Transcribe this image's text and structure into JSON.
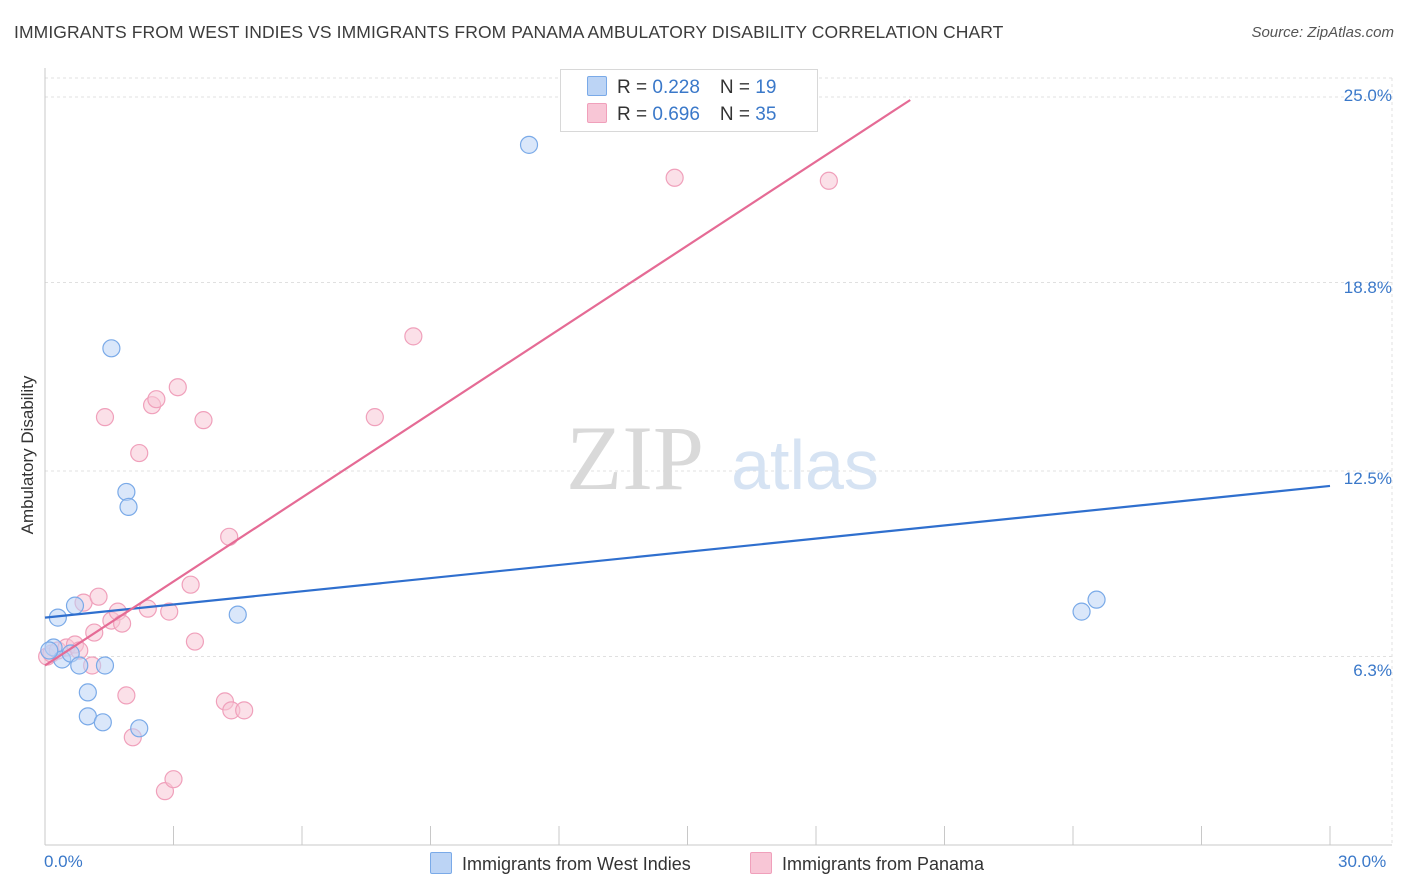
{
  "chart_data": {
    "type": "scatter",
    "title": "IMMIGRANTS FROM WEST INDIES VS IMMIGRANTS FROM PANAMA AMBULATORY DISABILITY CORRELATION CHART",
    "source": "Source: ZipAtlas.com",
    "ylabel": "Ambulatory Disability",
    "xlim": [
      0,
      30
    ],
    "ylim": [
      0,
      25
    ],
    "y_ticks": [
      {
        "value": 25.0,
        "label": "25.0%"
      },
      {
        "value": 18.8,
        "label": "18.8%"
      },
      {
        "value": 12.5,
        "label": "12.5%"
      },
      {
        "value": 6.3,
        "label": "6.3%"
      }
    ],
    "x_tick_labels": {
      "min": "0.0%",
      "max": "30.0%"
    },
    "watermark": {
      "zip": "ZIP",
      "atlas": "atlas"
    },
    "legend": [
      {
        "r_label": "R = ",
        "r": "0.228",
        "n_label": "N = ",
        "n": "19"
      },
      {
        "r_label": "R = ",
        "r": "0.696",
        "n_label": "N = ",
        "n": "35"
      }
    ],
    "series": [
      {
        "name": "Immigrants from West Indies",
        "color": "#7aaae8",
        "fill": "#bcd4f5",
        "line_color": "#2f6fce",
        "trend": {
          "x0": 0,
          "y0": 7.6,
          "x1": 30,
          "y1": 12.0
        },
        "points": [
          [
            0.2,
            6.6
          ],
          [
            0.3,
            7.6
          ],
          [
            0.4,
            6.2
          ],
          [
            0.6,
            6.4
          ],
          [
            0.7,
            8.0
          ],
          [
            0.8,
            6.0
          ],
          [
            1.0,
            5.1
          ],
          [
            1.0,
            4.3
          ],
          [
            1.35,
            4.1
          ],
          [
            1.4,
            6.0
          ],
          [
            1.55,
            16.6
          ],
          [
            1.9,
            11.8
          ],
          [
            1.95,
            11.3
          ],
          [
            2.2,
            3.9
          ],
          [
            4.5,
            7.7
          ],
          [
            11.3,
            23.4
          ],
          [
            24.2,
            7.8
          ],
          [
            24.55,
            8.2
          ],
          [
            0.1,
            6.5
          ]
        ]
      },
      {
        "name": "Immigrants from Panama",
        "color": "#f0a0bb",
        "fill": "#f8c6d6",
        "line_color": "#e56b95",
        "trend": {
          "x0": 0,
          "y0": 6.0,
          "x1": 20.2,
          "y1": 24.9
        },
        "points": [
          [
            0.05,
            6.3
          ],
          [
            0.15,
            6.4
          ],
          [
            0.3,
            6.5
          ],
          [
            0.5,
            6.6
          ],
          [
            0.7,
            6.7
          ],
          [
            0.8,
            6.5
          ],
          [
            0.9,
            8.1
          ],
          [
            1.1,
            6.0
          ],
          [
            1.15,
            7.1
          ],
          [
            1.25,
            8.3
          ],
          [
            1.4,
            14.3
          ],
          [
            1.55,
            7.5
          ],
          [
            1.7,
            7.8
          ],
          [
            1.8,
            7.4
          ],
          [
            1.9,
            5.0
          ],
          [
            2.05,
            3.6
          ],
          [
            2.2,
            13.1
          ],
          [
            2.4,
            7.9
          ],
          [
            2.5,
            14.7
          ],
          [
            2.6,
            14.9
          ],
          [
            2.8,
            1.8
          ],
          [
            2.9,
            7.8
          ],
          [
            3.0,
            2.2
          ],
          [
            3.1,
            15.3
          ],
          [
            3.4,
            8.7
          ],
          [
            3.5,
            6.8
          ],
          [
            3.7,
            14.2
          ],
          [
            4.2,
            4.8
          ],
          [
            4.3,
            10.3
          ],
          [
            4.35,
            4.5
          ],
          [
            4.65,
            4.5
          ],
          [
            7.7,
            14.3
          ],
          [
            8.6,
            17.0
          ],
          [
            14.7,
            22.3
          ],
          [
            18.3,
            22.2
          ]
        ]
      }
    ]
  }
}
